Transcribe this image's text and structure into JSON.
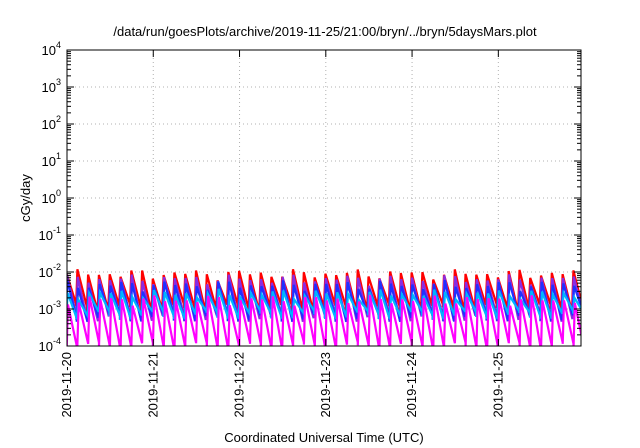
{
  "chart_data": {
    "type": "line",
    "title": "/data/run/goesPlots/archive/2019-11-25/21:00/bryn/../bryn/5daysMars.plot",
    "xlabel": "Coordinated Universal Time (UTC)",
    "ylabel": "cGy/day",
    "y_scale": "log",
    "ylim": [
      0.0001,
      10000
    ],
    "y_ticks": [
      {
        "base": "10",
        "exp": "-4"
      },
      {
        "base": "10",
        "exp": "-3"
      },
      {
        "base": "10",
        "exp": "-2"
      },
      {
        "base": "10",
        "exp": "-1"
      },
      {
        "base": "10",
        "exp": "0"
      },
      {
        "base": "10",
        "exp": "1"
      },
      {
        "base": "10",
        "exp": "2"
      },
      {
        "base": "10",
        "exp": "3"
      },
      {
        "base": "10",
        "exp": "4"
      }
    ],
    "x_ticks": [
      "2019-11-20",
      "2019-11-21",
      "2019-11-22",
      "2019-11-23",
      "2019-11-24",
      "2019-11-25"
    ],
    "xlim": [
      "2019-11-20T00:00",
      "2019-11-25T23:00"
    ],
    "grid": true,
    "legend": "none",
    "pattern": {
      "description": "sawtooth: ~8 rises per day, each peak decays until the next rise",
      "cycles_per_day": 8
    },
    "series": [
      {
        "color": "#ff0000",
        "peak": 0.009,
        "trough": 0.0011
      },
      {
        "color": "#8a2be2",
        "peak": 0.0065,
        "trough": 0.0006
      },
      {
        "color": "#2030ff",
        "peak": 0.0045,
        "trough": 0.0006
      },
      {
        "color": "#00b4ff",
        "peak": 0.0026,
        "trough": 0.0007
      },
      {
        "color": "#ff00ff",
        "peak": 0.0018,
        "trough": 0.0001
      }
    ]
  }
}
